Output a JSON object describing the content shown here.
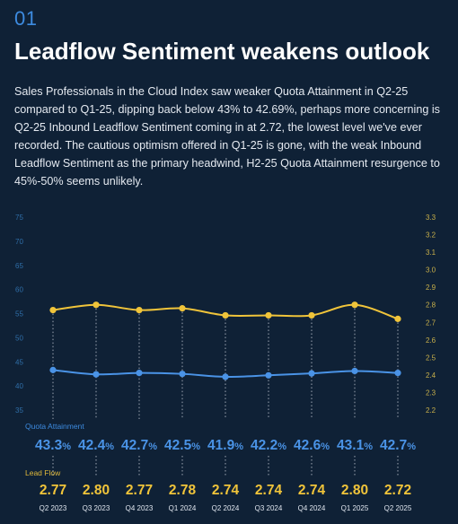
{
  "section_number": "01",
  "title": "Leadflow Sentiment weakens outlook",
  "body": "Sales Professionals in the Cloud Index saw weaker Quota Attainment in Q2-25 compared to Q1-25, dipping back below 43% to 42.69%, perhaps more concerning is Q2-25 Inbound Leadflow Sentiment coming in at 2.72, the lowest level we've ever recorded. The cautious optimism offered in Q1-25 is gone, with the weak Inbound Leadflow Sentiment as the primary headwind, H2-25 Quota Attainment resurgence to 45%-50% seems unlikely.",
  "colors": {
    "background": "#0f2136",
    "quota_line": "#4a93e6",
    "leadflow_line": "#f0c43a",
    "accent": "#3d8be0"
  },
  "chart_data": {
    "type": "line",
    "categories": [
      "Q2 2023",
      "Q3 2023",
      "Q4 2023",
      "Q1 2024",
      "Q2 2024",
      "Q3 2024",
      "Q4 2024",
      "Q1 2025",
      "Q2 2025"
    ],
    "series": [
      {
        "name": "Quota Attainment",
        "axis": "left",
        "values": [
          43.3,
          42.4,
          42.7,
          42.5,
          41.9,
          42.2,
          42.6,
          43.1,
          42.7
        ],
        "labels": [
          "43.3%",
          "42.4%",
          "42.7%",
          "42.5%",
          "41.9%",
          "42.2%",
          "42.6%",
          "43.1%",
          "42.7%"
        ]
      },
      {
        "name": "Lead Flow",
        "axis": "right",
        "values": [
          2.77,
          2.8,
          2.77,
          2.78,
          2.74,
          2.74,
          2.74,
          2.8,
          2.72
        ],
        "labels": [
          "2.77",
          "2.80",
          "2.77",
          "2.78",
          "2.74",
          "2.74",
          "2.74",
          "2.80",
          "2.72"
        ]
      }
    ],
    "left_axis": {
      "min": 35,
      "max": 75,
      "ticks": [
        "35",
        "40",
        "45",
        "50",
        "55",
        "60",
        "65",
        "70",
        "75"
      ]
    },
    "right_axis": {
      "min": 2.2,
      "max": 3.3,
      "ticks": [
        "2.2",
        "2.3",
        "2.4",
        "2.5",
        "2.6",
        "2.7",
        "2.8",
        "2.9",
        "3.0",
        "3.1",
        "3.2",
        "3.3"
      ]
    },
    "grid": false
  }
}
